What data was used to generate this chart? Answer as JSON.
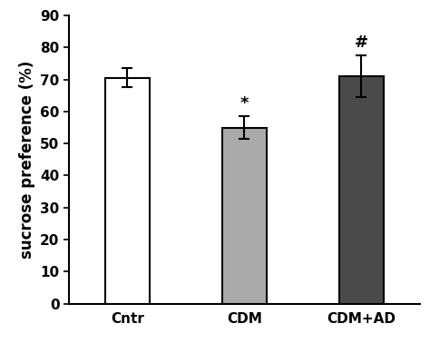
{
  "categories": [
    "Cntr",
    "CDM",
    "CDM+AD"
  ],
  "values": [
    70.5,
    55.0,
    71.0
  ],
  "errors": [
    3.0,
    3.5,
    6.5
  ],
  "bar_colors": [
    "#ffffff",
    "#aaaaaa",
    "#4a4a4a"
  ],
  "bar_edgecolors": [
    "#000000",
    "#000000",
    "#000000"
  ],
  "ylabel": "sucrose preference (%)",
  "ylim": [
    0,
    90
  ],
  "yticks": [
    0,
    10,
    20,
    30,
    40,
    50,
    60,
    70,
    80,
    90
  ],
  "significance_labels": [
    "",
    "*",
    "#"
  ],
  "sig_fontsize": 13,
  "bar_width": 0.38,
  "tick_fontsize": 11,
  "label_fontsize": 12,
  "capsize": 4,
  "errorbar_linewidth": 1.5,
  "bar_linewidth": 1.5,
  "xlim": [
    -0.5,
    2.5
  ]
}
